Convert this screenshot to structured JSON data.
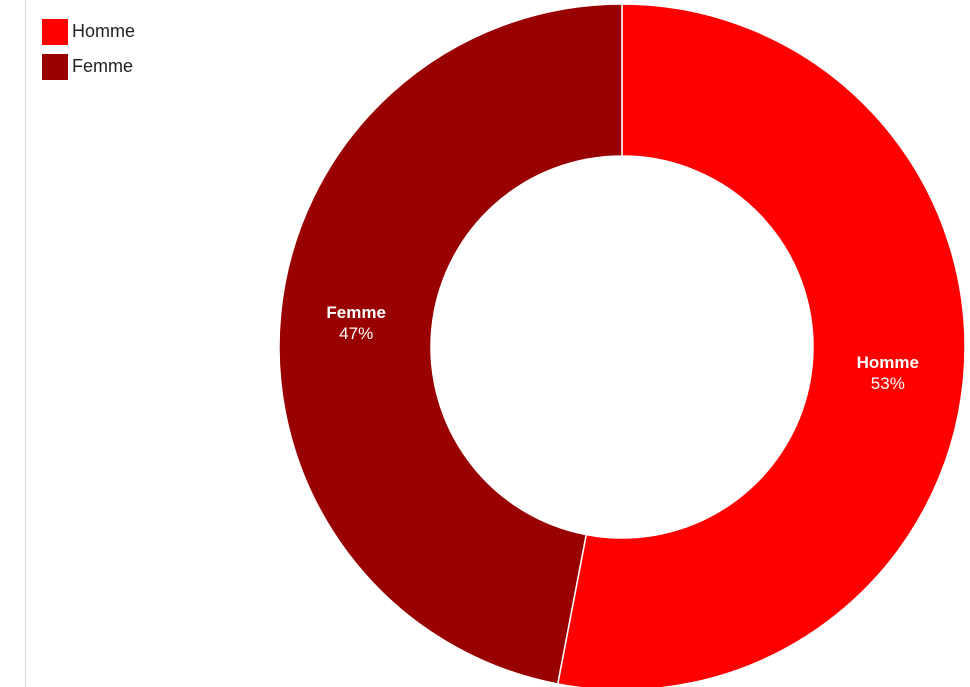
{
  "chart_data": {
    "type": "pie",
    "donut": true,
    "title": "",
    "legend_position": "top-left",
    "categories": [
      "Homme",
      "Femme"
    ],
    "values": [
      53,
      47
    ],
    "value_labels": [
      "53%",
      "47%"
    ],
    "colors": [
      "#ff0000",
      "#990000"
    ]
  },
  "legend": {
    "items": [
      {
        "label": "Homme",
        "color": "#ff0000"
      },
      {
        "label": "Femme",
        "color": "#990000"
      }
    ]
  },
  "slices": [
    {
      "name": "Homme",
      "pct": "53%"
    },
    {
      "name": "Femme",
      "pct": "47%"
    }
  ]
}
